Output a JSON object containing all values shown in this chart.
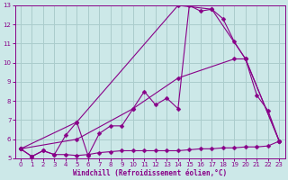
{
  "bg_color": "#cce8e8",
  "grid_color": "#aacccc",
  "line_color": "#880088",
  "marker_color": "#880088",
  "xlabel": "Windchill (Refroidissement éolien,°C)",
  "xlabel_color": "#880088",
  "tick_color": "#880088",
  "xlim": [
    -0.5,
    23.5
  ],
  "ylim": [
    5,
    13
  ],
  "yticks": [
    5,
    6,
    7,
    8,
    9,
    10,
    11,
    12,
    13
  ],
  "xticks": [
    0,
    1,
    2,
    3,
    4,
    5,
    6,
    7,
    8,
    9,
    10,
    11,
    12,
    13,
    14,
    15,
    16,
    17,
    18,
    19,
    20,
    21,
    22,
    23
  ],
  "line_flat": {
    "x": [
      0,
      1,
      2,
      3,
      4,
      5,
      6,
      7,
      8,
      9,
      10,
      11,
      12,
      13,
      14,
      15,
      16,
      17,
      18,
      19,
      20,
      21,
      22,
      23
    ],
    "y": [
      5.5,
      5.1,
      5.4,
      5.2,
      5.2,
      5.15,
      5.2,
      5.3,
      5.35,
      5.4,
      5.4,
      5.4,
      5.4,
      5.4,
      5.4,
      5.45,
      5.5,
      5.5,
      5.55,
      5.55,
      5.6,
      5.6,
      5.65,
      5.9
    ]
  },
  "line_zigzag": {
    "x": [
      0,
      1,
      2,
      3,
      4,
      5,
      6,
      7,
      8,
      9,
      10,
      11,
      12,
      13,
      14,
      15,
      16,
      17,
      18,
      19,
      20,
      21,
      22,
      23
    ],
    "y": [
      5.5,
      5.1,
      5.4,
      5.2,
      6.2,
      6.9,
      5.15,
      6.3,
      6.7,
      6.7,
      7.6,
      8.5,
      7.8,
      8.15,
      7.6,
      13.0,
      12.7,
      12.8,
      12.3,
      11.1,
      10.2,
      8.3,
      7.5,
      5.9
    ]
  },
  "line_diag1": {
    "x": [
      0,
      5,
      14,
      17,
      20,
      23
    ],
    "y": [
      5.5,
      6.9,
      13.0,
      12.8,
      10.2,
      5.9
    ]
  },
  "line_diag2": {
    "x": [
      0,
      5,
      10,
      14,
      19,
      20,
      23
    ],
    "y": [
      5.5,
      6.0,
      7.6,
      9.2,
      10.2,
      10.2,
      5.9
    ]
  }
}
